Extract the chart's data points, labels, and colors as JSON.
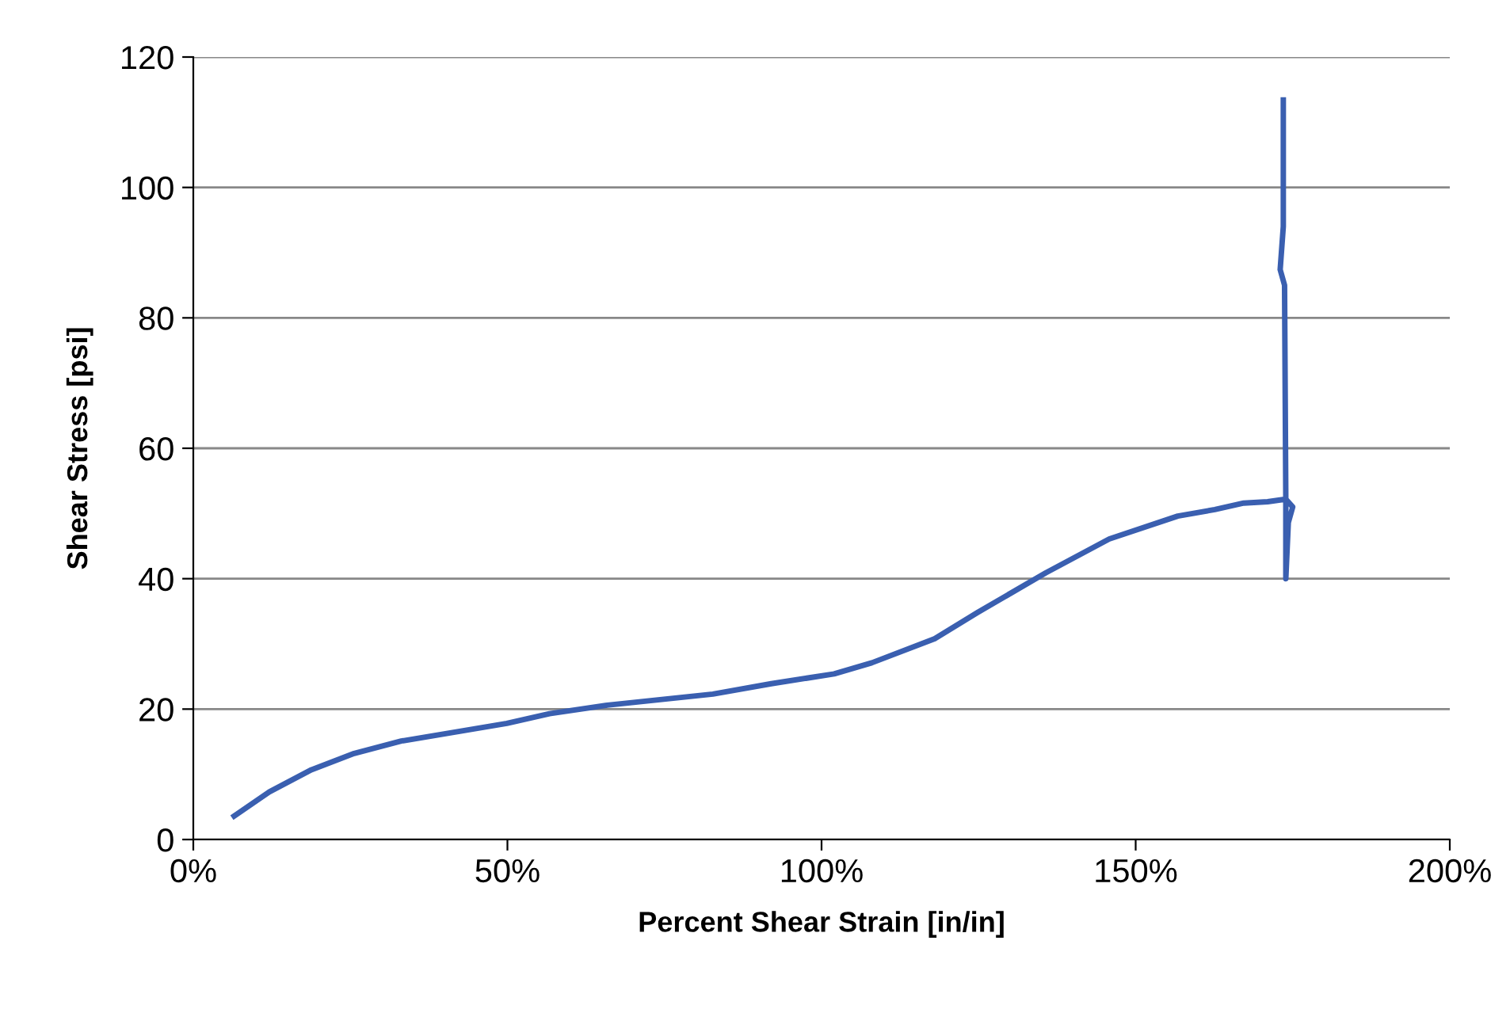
{
  "chart_data": {
    "type": "line",
    "xlabel": "Percent Shear Strain [in/in]",
    "ylabel": "Shear Stress [psi]",
    "series": [
      {
        "color": "#3a5fb0",
        "x": [
          6.5,
          12.1,
          18.8,
          25.6,
          33.1,
          42.4,
          49.9,
          56.7,
          65.9,
          82.7,
          92,
          102,
          108,
          118,
          124.8,
          135.7,
          145.8,
          156.7,
          162.6,
          167.2,
          171,
          173.9,
          175,
          174.3,
          173.9,
          173.9,
          173.7,
          173,
          173.5,
          173.5
        ],
        "values": [
          3.6,
          7.3,
          10.7,
          13.2,
          15.1,
          16.6,
          17.8,
          19.3,
          20.6,
          22.3,
          23.9,
          25.4,
          27.1,
          30.8,
          34.8,
          40.9,
          46.1,
          49.6,
          50.6,
          51.6,
          51.8,
          52.2,
          51,
          48.6,
          40,
          52,
          85,
          87.4,
          94,
          113.4
        ]
      }
    ],
    "xlim": [
      0,
      200
    ],
    "xticks": [
      {
        "value": 0,
        "label": "0%"
      },
      {
        "value": 50,
        "label": "50%"
      },
      {
        "value": 100,
        "label": "100%"
      },
      {
        "value": 150,
        "label": "150%"
      },
      {
        "value": 200,
        "label": "200%"
      }
    ],
    "ylim": [
      0,
      120
    ],
    "yticks": [
      0,
      20,
      40,
      60,
      80,
      100,
      120
    ],
    "grid": "y",
    "marker": "none",
    "line_style": "solid"
  }
}
